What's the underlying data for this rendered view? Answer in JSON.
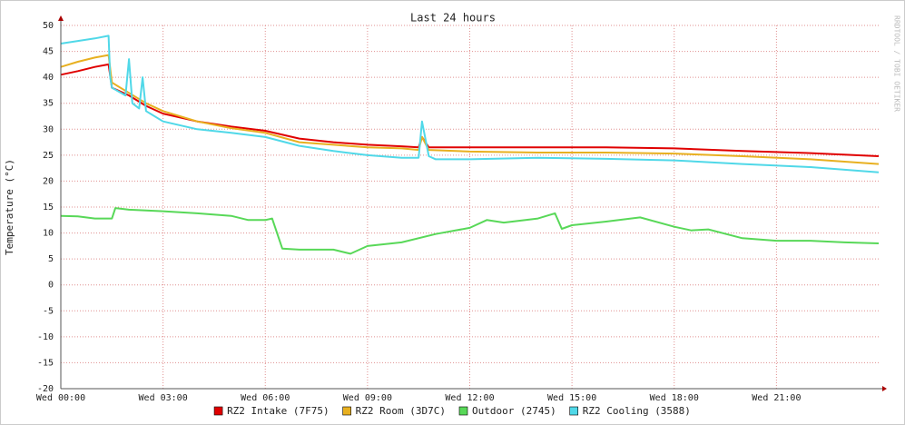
{
  "chart_data": {
    "type": "line",
    "title": "Last 24 hours",
    "y_label": "Temperature (°C)",
    "watermark": "RRDTOOL / TOBI OETIKER",
    "xlim": [
      0,
      24
    ],
    "xticks": [
      {
        "value": 0,
        "label": "Wed 00:00"
      },
      {
        "value": 3,
        "label": "Wed 03:00"
      },
      {
        "value": 6,
        "label": "Wed 06:00"
      },
      {
        "value": 9,
        "label": "Wed 09:00"
      },
      {
        "value": 12,
        "label": "Wed 12:00"
      },
      {
        "value": 15,
        "label": "Wed 15:00"
      },
      {
        "value": 18,
        "label": "Wed 18:00"
      },
      {
        "value": 21,
        "label": "Wed 21:00"
      }
    ],
    "ylim": [
      -20,
      50
    ],
    "yticks": [
      -20,
      -15,
      -10,
      -5,
      0,
      5,
      10,
      15,
      20,
      25,
      30,
      35,
      40,
      45,
      50
    ],
    "grid": true,
    "series": [
      {
        "name": "RZ2 Intake (7F75)",
        "color": "#e00000",
        "x": [
          0,
          0.5,
          1,
          1.4,
          1.5,
          2,
          2.5,
          3,
          4,
          5,
          6,
          7,
          8,
          9,
          10,
          10.5,
          10.6,
          10.8,
          12,
          14,
          16,
          18,
          20,
          22,
          24
        ],
        "values": [
          40.5,
          41.2,
          42,
          42.5,
          38,
          36.5,
          34.5,
          33,
          31.5,
          30.5,
          29.7,
          28.2,
          27.5,
          27,
          26.7,
          26.5,
          28.5,
          26.5,
          26.5,
          26.5,
          26.5,
          26.3,
          25.8,
          25.4,
          24.8
        ]
      },
      {
        "name": "RZ2 Room (3D7C)",
        "color": "#e8b020",
        "x": [
          0,
          0.5,
          1,
          1.4,
          1.5,
          2,
          2.5,
          3,
          4,
          5,
          6,
          7,
          8,
          9,
          10,
          10.5,
          10.6,
          10.8,
          12,
          14,
          16,
          18,
          20,
          22,
          24
        ],
        "values": [
          42,
          43,
          43.8,
          44.3,
          39,
          37,
          35,
          33.5,
          31.5,
          30.2,
          29.3,
          27.5,
          27,
          26.5,
          26.3,
          26,
          28.5,
          26,
          25.7,
          25.5,
          25.5,
          25.3,
          24.8,
          24.2,
          23.3
        ]
      },
      {
        "name": "Outdoor (2745)",
        "color": "#58d858",
        "x": [
          0,
          0.5,
          1,
          1.5,
          1.6,
          2,
          3,
          4,
          5,
          5.5,
          6,
          6.2,
          6.5,
          7,
          8,
          8.5,
          9,
          10,
          11,
          12,
          12.5,
          13,
          14,
          14.5,
          14.7,
          15,
          16,
          17,
          18,
          18.5,
          19,
          20,
          21,
          22,
          23,
          24
        ],
        "values": [
          13.3,
          13.2,
          12.8,
          12.8,
          14.8,
          14.5,
          14.2,
          13.8,
          13.3,
          12.5,
          12.5,
          12.8,
          7,
          6.8,
          6.8,
          6,
          7.5,
          8.2,
          9.8,
          11,
          12.5,
          12,
          12.8,
          13.8,
          10.8,
          11.5,
          12.2,
          13,
          11.2,
          10.5,
          10.7,
          9,
          8.5,
          8.5,
          8.2,
          8
        ]
      },
      {
        "name": "RZ2 Cooling (3588)",
        "color": "#50d8e8",
        "x": [
          0,
          0.5,
          1,
          1.4,
          1.45,
          1.5,
          1.9,
          2,
          2.1,
          2.3,
          2.4,
          2.5,
          3,
          4,
          5,
          6,
          7,
          8,
          9,
          10,
          10.5,
          10.6,
          10.8,
          11,
          12,
          14,
          16,
          18,
          20,
          22,
          24
        ],
        "values": [
          46.5,
          47,
          47.5,
          48,
          40,
          38,
          36.5,
          43.5,
          35,
          34,
          40,
          33.5,
          31.5,
          30,
          29.3,
          28.5,
          26.8,
          25.8,
          25,
          24.5,
          24.5,
          31.5,
          24.8,
          24.2,
          24.2,
          24.5,
          24.3,
          24,
          23.3,
          22.7,
          21.7
        ]
      }
    ]
  }
}
